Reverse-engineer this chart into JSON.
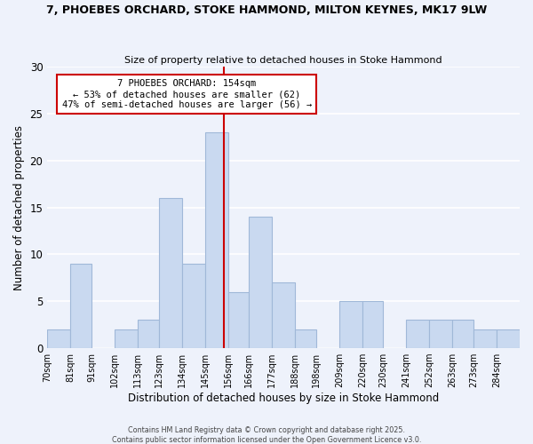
{
  "title_line1": "7, PHOEBES ORCHARD, STOKE HAMMOND, MILTON KEYNES, MK17 9LW",
  "title_line2": "Size of property relative to detached houses in Stoke Hammond",
  "xlabel": "Distribution of detached houses by size in Stoke Hammond",
  "ylabel": "Number of detached properties",
  "bar_labels": [
    "70sqm",
    "81sqm",
    "91sqm",
    "102sqm",
    "113sqm",
    "123sqm",
    "134sqm",
    "145sqm",
    "156sqm",
    "166sqm",
    "177sqm",
    "188sqm",
    "198sqm",
    "209sqm",
    "220sqm",
    "230sqm",
    "241sqm",
    "252sqm",
    "263sqm",
    "273sqm",
    "284sqm"
  ],
  "bar_values": [
    2,
    9,
    0,
    2,
    3,
    16,
    9,
    23,
    6,
    14,
    7,
    2,
    0,
    5,
    5,
    0,
    3,
    3,
    3,
    2,
    2
  ],
  "bar_edges": [
    70,
    81,
    91,
    102,
    113,
    123,
    134,
    145,
    156,
    166,
    177,
    188,
    198,
    209,
    220,
    230,
    241,
    252,
    263,
    273,
    284,
    295
  ],
  "bar_color": "#c9d9f0",
  "bar_edgecolor": "#a0b8d8",
  "vline_x": 154,
  "vline_color": "#cc0000",
  "annotation_title": "7 PHOEBES ORCHARD: 154sqm",
  "annotation_line2": "← 53% of detached houses are smaller (62)",
  "annotation_line3": "47% of semi-detached houses are larger (56) →",
  "annotation_box_edgecolor": "#cc0000",
  "ylim": [
    0,
    30
  ],
  "yticks": [
    0,
    5,
    10,
    15,
    20,
    25,
    30
  ],
  "background_color": "#eef2fb",
  "grid_color": "#ffffff",
  "footer_line1": "Contains HM Land Registry data © Crown copyright and database right 2025.",
  "footer_line2": "Contains public sector information licensed under the Open Government Licence v3.0."
}
